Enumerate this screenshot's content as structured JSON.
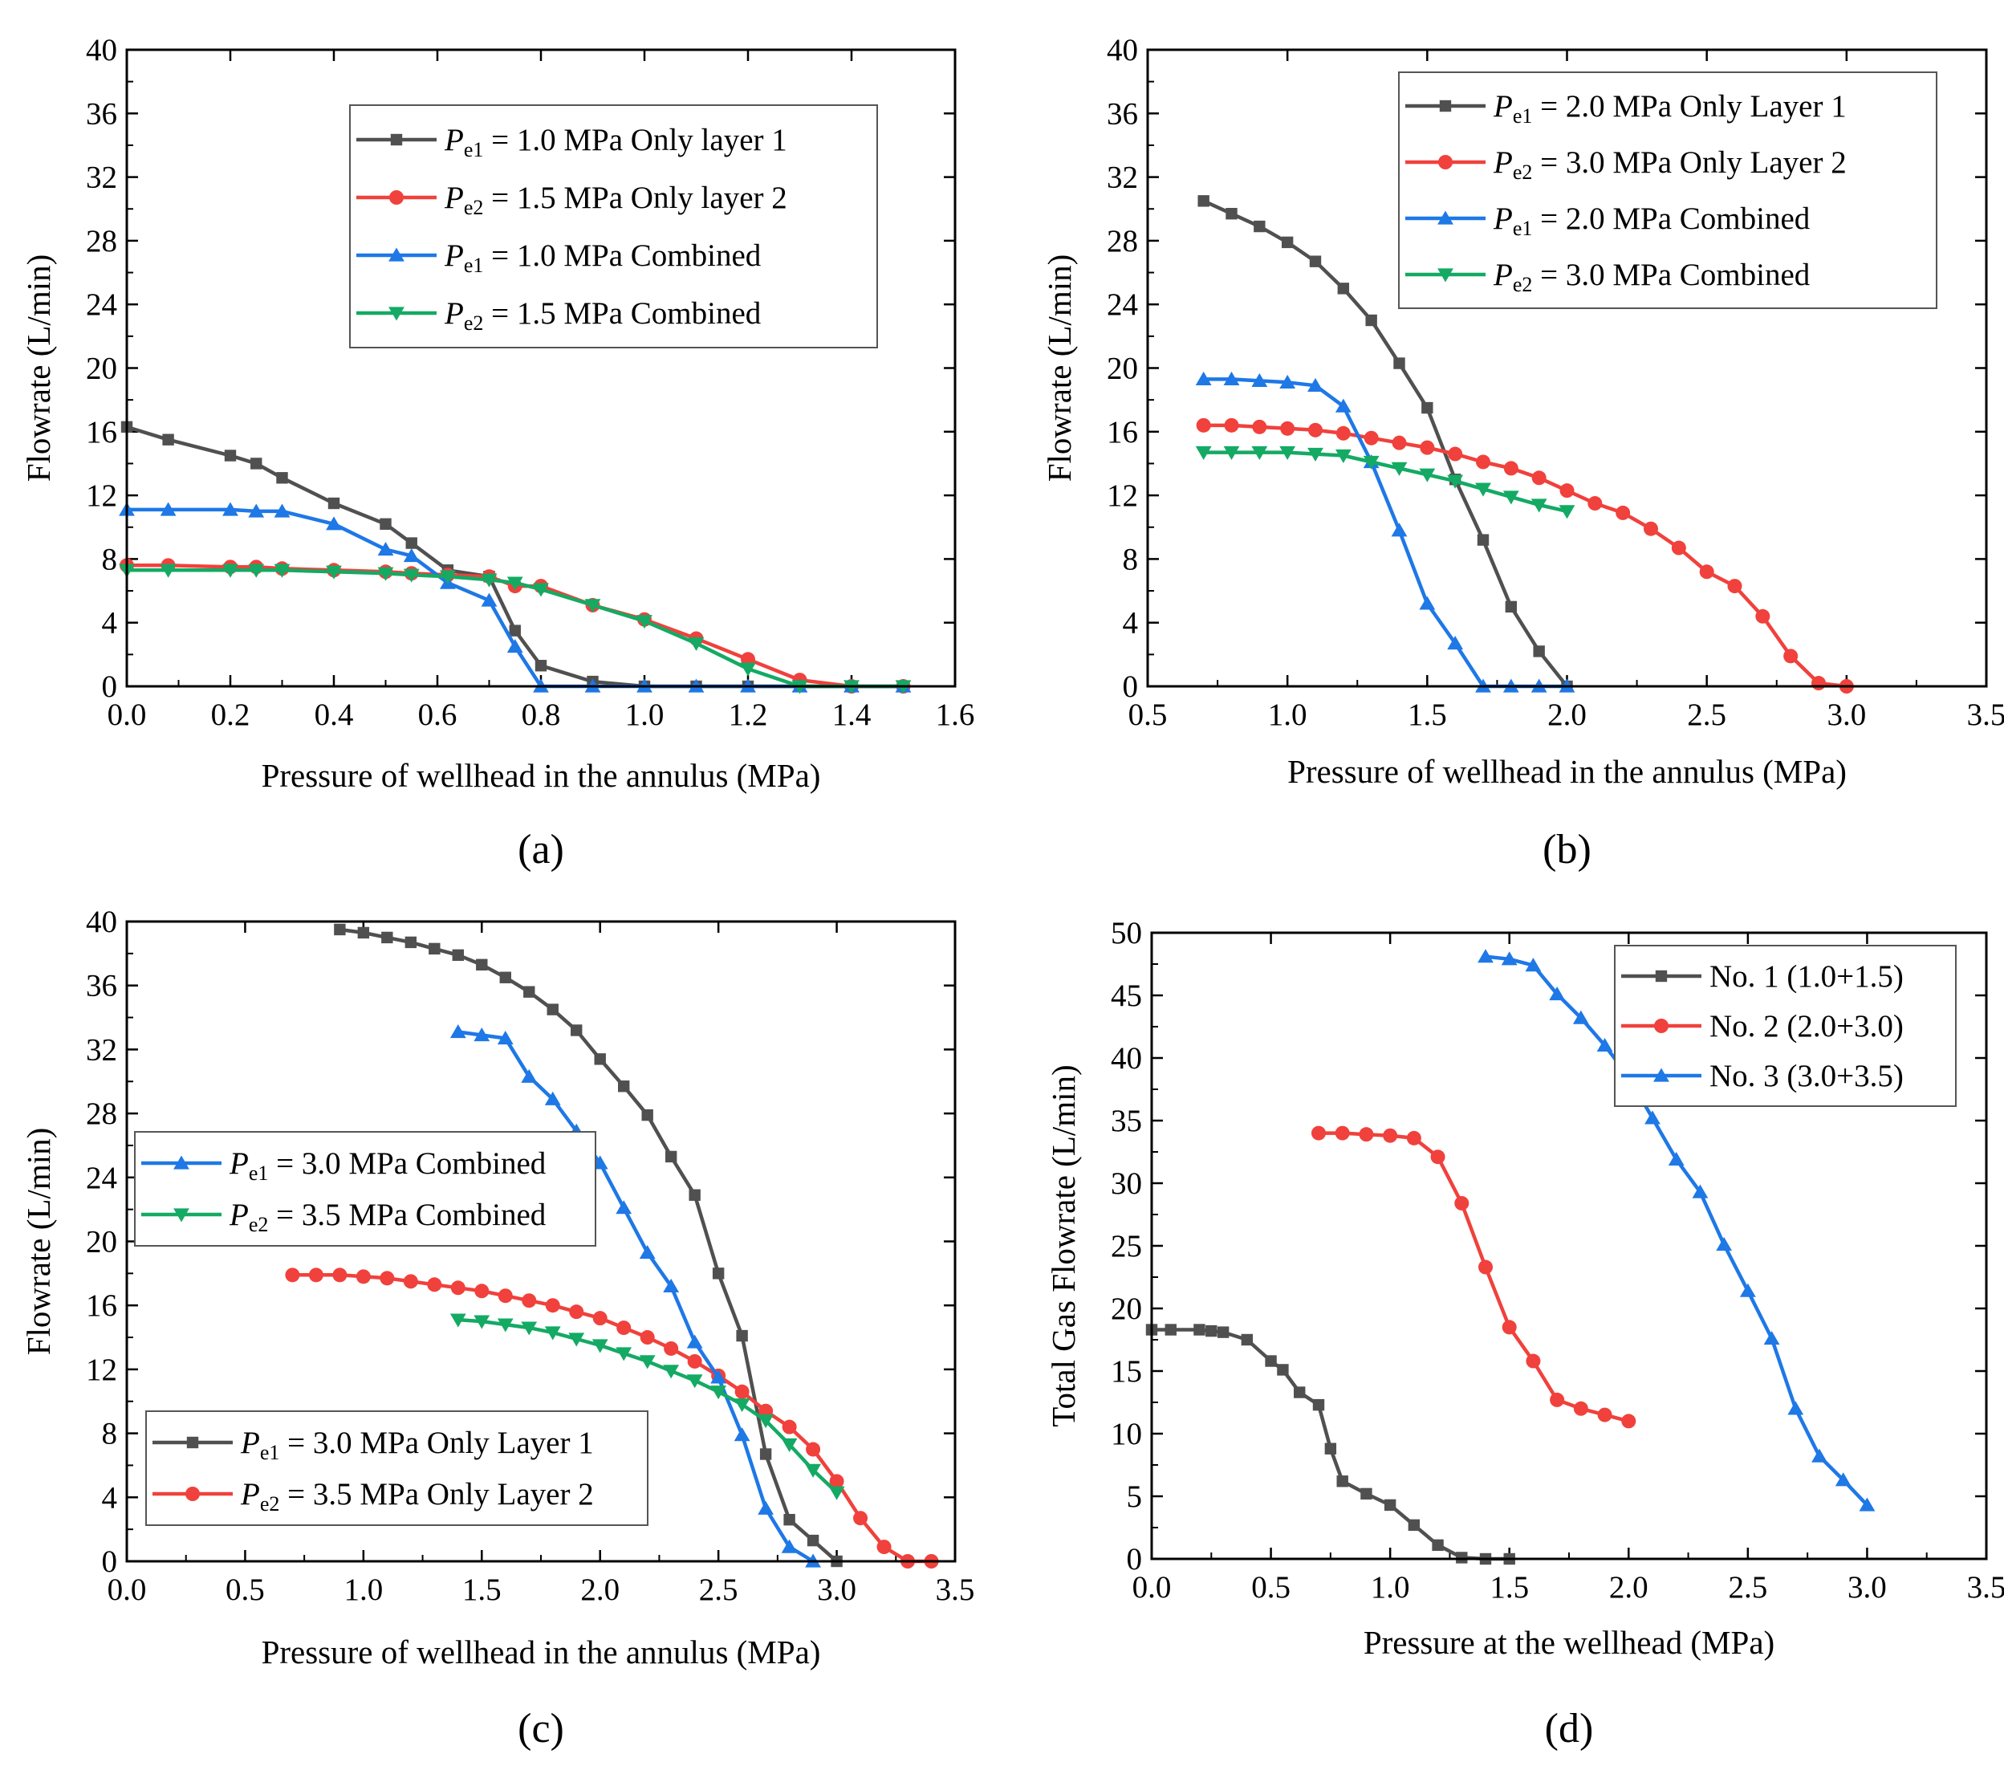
{
  "colors": {
    "black": "#505050",
    "red": "#f0413c",
    "blue": "#1e78e6",
    "green": "#14aa64"
  },
  "chart_data": [
    {
      "id": "a",
      "type": "line",
      "panel_label": "(a)",
      "xlabel": "Pressure of wellhead in the annulus (MPa)",
      "ylabel": "Flowrate (L/min)",
      "xlim": [
        0,
        1.6
      ],
      "ylim": [
        0,
        40
      ],
      "xticks": [
        0,
        0.2,
        0.4,
        0.6,
        0.8,
        1.0,
        1.2,
        1.4,
        1.6
      ],
      "xtick_labels": [
        "0.0",
        "0.2",
        "0.4",
        "0.6",
        "0.8",
        "1.0",
        "1.2",
        "1.4",
        "1.6"
      ],
      "yticks": [
        0,
        4,
        8,
        12,
        16,
        20,
        24,
        28,
        32,
        36,
        40
      ],
      "ytick_labels": [
        "0",
        "4",
        "8",
        "12",
        "16",
        "20",
        "24",
        "28",
        "32",
        "36",
        "40"
      ],
      "legend_position": "top-right",
      "series": [
        {
          "name": "Pe1 = 1.0 MPa Only layer 1",
          "legend": {
            "symbol": "P",
            "sub": "e1",
            "text": " = 1.0 MPa Only layer 1"
          },
          "color": "black",
          "marker": "square",
          "x": [
            0,
            0.08,
            0.2,
            0.25,
            0.3,
            0.4,
            0.5,
            0.55,
            0.62,
            0.7,
            0.75,
            0.8,
            0.9,
            1.0,
            1.1,
            1.2,
            1.3,
            1.4,
            1.5
          ],
          "y": [
            16.3,
            15.5,
            14.5,
            14.0,
            13.1,
            11.5,
            10.2,
            9.0,
            7.3,
            6.9,
            3.5,
            1.3,
            0.3,
            0,
            0,
            0,
            0,
            0,
            0
          ]
        },
        {
          "name": "Pe2 = 1.5 MPa Only layer 2",
          "legend": {
            "symbol": "P",
            "sub": "e2",
            "text": " = 1.5 MPa Only layer 2"
          },
          "color": "red",
          "marker": "circle",
          "x": [
            0,
            0.08,
            0.2,
            0.25,
            0.3,
            0.4,
            0.5,
            0.55,
            0.62,
            0.7,
            0.75,
            0.8,
            0.9,
            1.0,
            1.1,
            1.2,
            1.3,
            1.4,
            1.5
          ],
          "y": [
            7.6,
            7.6,
            7.5,
            7.5,
            7.4,
            7.3,
            7.2,
            7.1,
            7.0,
            6.9,
            6.3,
            6.3,
            5.1,
            4.2,
            3.0,
            1.7,
            0.4,
            0,
            0
          ]
        },
        {
          "name": "Pe1 = 1.0 MPa Combined",
          "legend": {
            "symbol": "P",
            "sub": "e1",
            "text": " = 1.0 MPa Combined"
          },
          "color": "blue",
          "marker": "triangle-up",
          "x": [
            0,
            0.08,
            0.2,
            0.25,
            0.3,
            0.4,
            0.5,
            0.55,
            0.62,
            0.7,
            0.75,
            0.8,
            0.9,
            1.0,
            1.1,
            1.2,
            1.3,
            1.4,
            1.5
          ],
          "y": [
            11.1,
            11.1,
            11.1,
            11.0,
            11.0,
            10.2,
            8.6,
            8.2,
            6.5,
            5.4,
            2.5,
            0,
            0,
            0,
            0,
            0,
            0,
            0,
            0
          ]
        },
        {
          "name": "Pe2 = 1.5 MPa Combined",
          "legend": {
            "symbol": "P",
            "sub": "e2",
            "text": " = 1.5 MPa Combined"
          },
          "color": "green",
          "marker": "triangle-down",
          "x": [
            0,
            0.08,
            0.2,
            0.25,
            0.3,
            0.4,
            0.5,
            0.55,
            0.62,
            0.7,
            0.75,
            0.8,
            0.9,
            1.0,
            1.1,
            1.2,
            1.3,
            1.4,
            1.5
          ],
          "y": [
            7.3,
            7.3,
            7.3,
            7.3,
            7.3,
            7.2,
            7.1,
            7.0,
            6.9,
            6.7,
            6.5,
            6.1,
            5.1,
            4.1,
            2.7,
            1.1,
            0,
            0,
            0
          ]
        }
      ]
    },
    {
      "id": "b",
      "type": "line",
      "panel_label": "(b)",
      "xlabel": "Pressure of wellhead in the annulus (MPa)",
      "ylabel": "Flowrate (L/min)",
      "xlim": [
        0.5,
        3.5
      ],
      "ylim": [
        0,
        40
      ],
      "xticks": [
        0.5,
        1.0,
        1.5,
        2.0,
        2.5,
        3.0,
        3.5
      ],
      "xtick_labels": [
        "0.5",
        "1.0",
        "1.5",
        "2.0",
        "2.5",
        "3.0",
        "3.5"
      ],
      "yticks": [
        0,
        4,
        8,
        12,
        16,
        20,
        24,
        28,
        32,
        36,
        40
      ],
      "ytick_labels": [
        "0",
        "4",
        "8",
        "12",
        "16",
        "20",
        "24",
        "28",
        "32",
        "36",
        "40"
      ],
      "legend_position": "top-right",
      "series": [
        {
          "name": "Pe1 = 2.0 MPa Only Layer 1",
          "legend": {
            "symbol": "P",
            "sub": "e1",
            "text": " = 2.0 MPa Only Layer 1"
          },
          "color": "black",
          "marker": "square",
          "x": [
            0.7,
            0.8,
            0.9,
            1.0,
            1.1,
            1.2,
            1.3,
            1.4,
            1.5,
            1.6,
            1.7,
            1.8,
            1.9,
            2.0
          ],
          "y": [
            30.5,
            29.7,
            28.9,
            27.9,
            26.7,
            25.0,
            23.0,
            20.3,
            17.5,
            13.0,
            9.2,
            5.0,
            2.2,
            0
          ]
        },
        {
          "name": "Pe2 = 3.0 MPa Only Layer 2",
          "legend": {
            "symbol": "P",
            "sub": "e2",
            "text": " = 3.0 MPa Only Layer 2"
          },
          "color": "red",
          "marker": "circle",
          "x": [
            0.7,
            0.8,
            0.9,
            1.0,
            1.1,
            1.2,
            1.3,
            1.4,
            1.5,
            1.6,
            1.7,
            1.8,
            1.9,
            2.0,
            2.1,
            2.2,
            2.3,
            2.4,
            2.5,
            2.6,
            2.7,
            2.8,
            2.9,
            3.0
          ],
          "y": [
            16.4,
            16.4,
            16.3,
            16.2,
            16.1,
            15.9,
            15.6,
            15.3,
            15.0,
            14.6,
            14.1,
            13.7,
            13.1,
            12.3,
            11.5,
            10.9,
            9.9,
            8.7,
            7.2,
            6.3,
            4.4,
            1.9,
            0.2,
            0
          ]
        },
        {
          "name": "Pe1 = 2.0 MPa Combined",
          "legend": {
            "symbol": "P",
            "sub": "e1",
            "text": " = 2.0 MPa Combined"
          },
          "color": "blue",
          "marker": "triangle-up",
          "x": [
            0.7,
            0.8,
            0.9,
            1.0,
            1.1,
            1.2,
            1.3,
            1.4,
            1.5,
            1.6,
            1.7,
            1.8,
            1.9,
            2.0
          ],
          "y": [
            19.3,
            19.3,
            19.2,
            19.1,
            18.9,
            17.6,
            14.1,
            9.8,
            5.2,
            2.7,
            0,
            0,
            0,
            0
          ]
        },
        {
          "name": "Pe2 = 3.0 MPa Combined",
          "legend": {
            "symbol": "P",
            "sub": "e2",
            "text": " = 3.0 MPa Combined"
          },
          "color": "green",
          "marker": "triangle-down",
          "x": [
            0.7,
            0.8,
            0.9,
            1.0,
            1.1,
            1.2,
            1.3,
            1.4,
            1.5,
            1.6,
            1.7,
            1.8,
            1.9,
            2.0
          ],
          "y": [
            14.7,
            14.7,
            14.7,
            14.7,
            14.6,
            14.5,
            14.1,
            13.7,
            13.3,
            12.9,
            12.4,
            11.9,
            11.4,
            11.0
          ]
        }
      ]
    },
    {
      "id": "c",
      "type": "line",
      "panel_label": "(c)",
      "xlabel": "Pressure of wellhead in the annulus (MPa)",
      "ylabel": "Flowrate (L/min)",
      "xlim": [
        0,
        3.5
      ],
      "ylim": [
        0,
        40
      ],
      "xticks": [
        0,
        0.5,
        1.0,
        1.5,
        2.0,
        2.5,
        3.0,
        3.5
      ],
      "xtick_labels": [
        "0.0",
        "0.5",
        "1.0",
        "1.5",
        "2.0",
        "2.5",
        "3.0",
        "3.5"
      ],
      "yticks": [
        0,
        4,
        8,
        12,
        16,
        20,
        24,
        28,
        32,
        36,
        40
      ],
      "ytick_labels": [
        "0",
        "4",
        "8",
        "12",
        "16",
        "20",
        "24",
        "28",
        "32",
        "36",
        "40"
      ],
      "legend_position": "middle-left and bottom-left",
      "legend_groups": [
        [
          2,
          3
        ],
        [
          0,
          1
        ]
      ],
      "series": [
        {
          "name": "Pe1 = 3.0 MPa Only Layer 1",
          "legend": {
            "symbol": "P",
            "sub": "e1",
            "text": " = 3.0 MPa Only Layer 1"
          },
          "color": "black",
          "marker": "square",
          "x": [
            0.9,
            1.0,
            1.1,
            1.2,
            1.3,
            1.4,
            1.5,
            1.6,
            1.7,
            1.8,
            1.9,
            2.0,
            2.1,
            2.2,
            2.3,
            2.4,
            2.5,
            2.6,
            2.7,
            2.8,
            2.9,
            3.0
          ],
          "y": [
            39.5,
            39.3,
            39.0,
            38.7,
            38.3,
            37.9,
            37.3,
            36.5,
            35.6,
            34.5,
            33.2,
            31.4,
            29.7,
            27.9,
            25.3,
            22.9,
            18.0,
            14.1,
            6.7,
            2.6,
            1.3,
            0
          ]
        },
        {
          "name": "Pe2 = 3.5 MPa Only Layer 2",
          "legend": {
            "symbol": "P",
            "sub": "e2",
            "text": " = 3.5 MPa Only Layer 2"
          },
          "color": "red",
          "marker": "circle",
          "x": [
            0.7,
            0.8,
            0.9,
            1.0,
            1.1,
            1.2,
            1.3,
            1.4,
            1.5,
            1.6,
            1.7,
            1.8,
            1.9,
            2.0,
            2.1,
            2.2,
            2.3,
            2.4,
            2.5,
            2.6,
            2.7,
            2.8,
            2.9,
            3.0,
            3.1,
            3.2,
            3.3,
            3.4
          ],
          "y": [
            17.9,
            17.9,
            17.9,
            17.8,
            17.7,
            17.5,
            17.3,
            17.1,
            16.9,
            16.6,
            16.3,
            16.0,
            15.6,
            15.2,
            14.6,
            14.0,
            13.3,
            12.5,
            11.6,
            10.6,
            9.4,
            8.4,
            7.0,
            5.0,
            2.7,
            0.9,
            0,
            0
          ]
        },
        {
          "name": "Pe1 = 3.0 MPa Combined",
          "legend": {
            "symbol": "P",
            "sub": "e1",
            "text": " = 3.0 MPa Combined"
          },
          "color": "blue",
          "marker": "triangle-up",
          "x": [
            1.4,
            1.5,
            1.6,
            1.7,
            1.8,
            1.9,
            2.0,
            2.1,
            2.2,
            2.3,
            2.4,
            2.5,
            2.6,
            2.7,
            2.8,
            2.9
          ],
          "y": [
            33.1,
            32.9,
            32.7,
            30.3,
            28.9,
            26.9,
            24.9,
            22.1,
            19.3,
            17.2,
            13.7,
            11.5,
            7.9,
            3.3,
            0.9,
            0
          ]
        },
        {
          "name": "Pe2 = 3.5 MPa Combined",
          "legend": {
            "symbol": "P",
            "sub": "e2",
            "text": " = 3.5 MPa Combined"
          },
          "color": "green",
          "marker": "triangle-down",
          "x": [
            1.4,
            1.5,
            1.6,
            1.7,
            1.8,
            1.9,
            2.0,
            2.1,
            2.2,
            2.3,
            2.4,
            2.5,
            2.6,
            2.7,
            2.8,
            2.9,
            3.0
          ],
          "y": [
            15.1,
            15.0,
            14.8,
            14.6,
            14.3,
            13.9,
            13.5,
            13.0,
            12.5,
            11.9,
            11.3,
            10.6,
            9.8,
            8.8,
            7.3,
            5.7,
            4.3
          ]
        }
      ]
    },
    {
      "id": "d",
      "type": "line",
      "panel_label": "(d)",
      "xlabel": "Pressure at the wellhead (MPa)",
      "ylabel": "Total Gas Flowrate (L/min)",
      "xlim": [
        0,
        3.5
      ],
      "ylim": [
        0,
        50
      ],
      "xticks": [
        0,
        0.5,
        1.0,
        1.5,
        2.0,
        2.5,
        3.0,
        3.5
      ],
      "xtick_labels": [
        "0.0",
        "0.5",
        "1.0",
        "1.5",
        "2.0",
        "2.5",
        "3.0",
        "3.5"
      ],
      "yticks": [
        0,
        5,
        10,
        15,
        20,
        25,
        30,
        35,
        40,
        45,
        50
      ],
      "ytick_labels": [
        "0",
        "5",
        "10",
        "15",
        "20",
        "25",
        "30",
        "35",
        "40",
        "45",
        "50"
      ],
      "legend_position": "top-right",
      "series": [
        {
          "name": "No. 1 (1.0+1.5)",
          "legend": {
            "text": "No. 1 (1.0+1.5)"
          },
          "color": "black",
          "marker": "square",
          "x": [
            0,
            0.08,
            0.2,
            0.25,
            0.3,
            0.4,
            0.5,
            0.55,
            0.62,
            0.7,
            0.75,
            0.8,
            0.9,
            1.0,
            1.1,
            1.2,
            1.3,
            1.4,
            1.5
          ],
          "y": [
            18.3,
            18.3,
            18.3,
            18.2,
            18.1,
            17.5,
            15.8,
            15.1,
            13.3,
            12.3,
            8.8,
            6.2,
            5.2,
            4.3,
            2.7,
            1.1,
            0.1,
            0,
            0
          ]
        },
        {
          "name": "No. 2 (2.0+3.0)",
          "legend": {
            "text": "No. 2 (2.0+3.0)"
          },
          "color": "red",
          "marker": "circle",
          "x": [
            0.7,
            0.8,
            0.9,
            1.0,
            1.1,
            1.2,
            1.3,
            1.4,
            1.5,
            1.6,
            1.7,
            1.8,
            1.9,
            2.0
          ],
          "y": [
            34.0,
            34.0,
            33.9,
            33.8,
            33.6,
            32.1,
            28.4,
            23.3,
            18.5,
            15.8,
            12.7,
            12.0,
            11.5,
            11.0
          ]
        },
        {
          "name": "No. 3 (3.0+3.5)",
          "legend": {
            "text": "No. 3 (3.0+3.5)"
          },
          "color": "blue",
          "marker": "triangle-up",
          "x": [
            1.4,
            1.5,
            1.6,
            1.7,
            1.8,
            1.9,
            2.0,
            2.1,
            2.2,
            2.3,
            2.4,
            2.5,
            2.6,
            2.7,
            2.8,
            2.9,
            3.0
          ],
          "y": [
            48.1,
            47.9,
            47.4,
            45.1,
            43.2,
            41.0,
            38.5,
            35.2,
            31.9,
            29.3,
            25.1,
            21.4,
            17.6,
            12.0,
            8.2,
            6.3,
            4.3
          ]
        }
      ]
    }
  ]
}
